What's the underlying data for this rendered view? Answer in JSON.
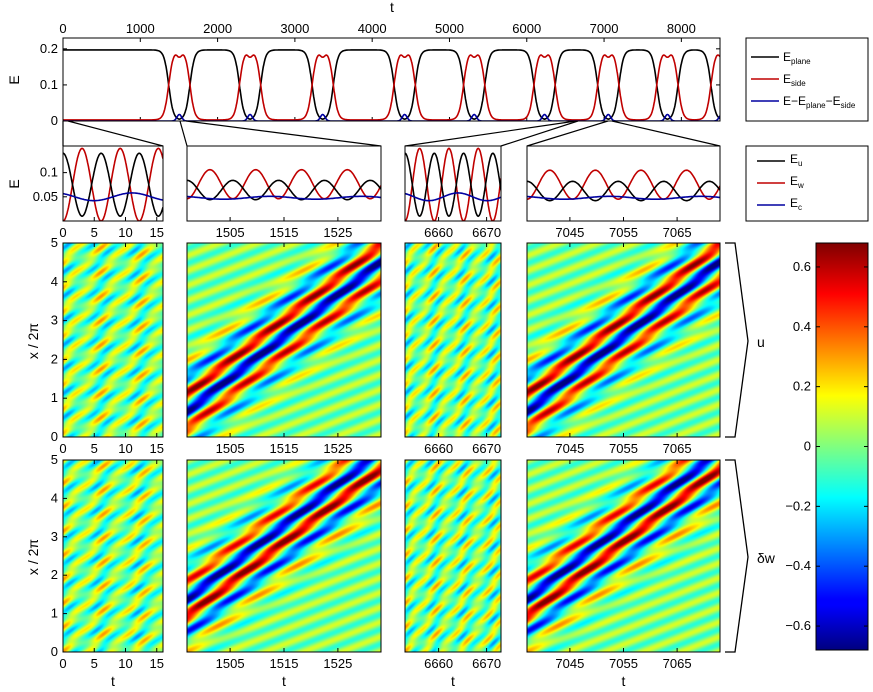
{
  "chart_data": [
    {
      "type": "line",
      "panel": "overview",
      "xlabel": "t",
      "ylabel": "E",
      "xlim": [
        0,
        8500
      ],
      "ylim": [
        0,
        0.23
      ],
      "xticks": [
        "0",
        "1000",
        "2000",
        "3000",
        "4000",
        "5000",
        "6000",
        "7000",
        "8000"
      ],
      "yticks": [
        "0",
        "0.1",
        "0.2"
      ],
      "xtick_values": [
        0,
        1000,
        2000,
        3000,
        4000,
        5000,
        6000,
        7000,
        8000
      ],
      "ytick_values": [
        0,
        0.1,
        0.2
      ],
      "plane_level": 0.197,
      "dip_level": 0.003,
      "bump_peak": 0.018,
      "dip_centers": [
        1505,
        2420,
        3360,
        4420,
        5320,
        6230,
        7055,
        7820,
        8520
      ],
      "dip_half_width": 250,
      "legend_position": "right",
      "series": [
        {
          "name": "E",
          "sub": "plane",
          "color": "#000000"
        },
        {
          "name": "E",
          "sub": "side",
          "color": "#c00000"
        },
        {
          "name": "E−E",
          "sub": "plane",
          "name2": "−E",
          "sub2": "side",
          "color": "#0000a0"
        }
      ]
    },
    {
      "type": "line",
      "panel": "zoom",
      "ylabel": "E",
      "ylim": [
        0,
        0.155
      ],
      "yticks": [
        "0.05",
        "0.1"
      ],
      "ytick_values": [
        0.05,
        0.1
      ],
      "legend_position": "right",
      "series": [
        {
          "name": "E",
          "sub": "u",
          "color": "#000000"
        },
        {
          "name": "E",
          "sub": "w",
          "color": "#c00000"
        },
        {
          "name": "E",
          "sub": "c",
          "color": "#0000a0"
        }
      ],
      "windows": [
        {
          "xlim": [
            0,
            16
          ],
          "xticks": [
            "0",
            "5",
            "10",
            "15"
          ],
          "xtick_values": [
            0,
            5,
            10,
            15
          ],
          "period": 6.1,
          "u_mean": 0.075,
          "u_amp": 0.065,
          "w_mean": 0.075,
          "w_amp": 0.075,
          "c_mean": 0.05,
          "c_amp": 0.008
        },
        {
          "xlim": [
            1497,
            1533
          ],
          "xticks": [
            "1505",
            "1515",
            "1525"
          ],
          "xtick_values": [
            1505,
            1515,
            1525
          ],
          "period": 8.5,
          "u_mean": 0.064,
          "u_amp": 0.02,
          "w_mean": 0.076,
          "w_amp": 0.03,
          "c_mean": 0.048,
          "c_amp": 0.003
        },
        {
          "xlim": [
            6653,
            6673
          ],
          "xticks": [
            "6660",
            "6670"
          ],
          "xtick_values": [
            6660,
            6670
          ],
          "period": 6.1,
          "u_mean": 0.075,
          "u_amp": 0.065,
          "w_mean": 0.075,
          "w_amp": 0.075,
          "c_mean": 0.05,
          "c_amp": 0.008
        },
        {
          "xlim": [
            7037,
            7073
          ],
          "xticks": [
            "7045",
            "7055",
            "7065"
          ],
          "xtick_values": [
            7045,
            7055,
            7065
          ],
          "period": 8.5,
          "u_mean": 0.062,
          "u_amp": 0.02,
          "w_mean": 0.075,
          "w_amp": 0.03,
          "c_mean": 0.048,
          "c_amp": 0.003
        }
      ]
    },
    {
      "type": "heatmap",
      "panel": "fields",
      "xlabel": "t",
      "ylabel": "x / 2π",
      "ylim": [
        0,
        5
      ],
      "yticks": [
        "0",
        "1",
        "2",
        "3",
        "4",
        "5"
      ],
      "ytick_values": [
        0,
        1,
        2,
        3,
        4,
        5
      ],
      "rows": [
        {
          "field": "u",
          "label": "u"
        },
        {
          "field": "dw",
          "label": "δw"
        }
      ],
      "colorbar": {
        "vmin": -0.68,
        "vmax": 0.68,
        "ticks": [
          "0.6",
          "0.4",
          "0.2",
          "0",
          "−0.2",
          "−0.4",
          "−0.6"
        ],
        "tick_values": [
          0.6,
          0.4,
          0.2,
          0,
          -0.2,
          -0.4,
          -0.6
        ]
      },
      "amplitude_small": 0.24,
      "amplitude_large": 0.66
    }
  ]
}
